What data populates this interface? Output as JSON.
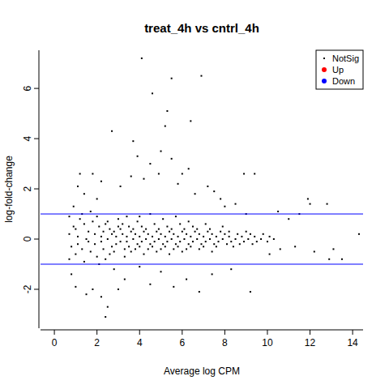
{
  "chart_data": {
    "type": "scatter",
    "title": "treat_4h vs cntrl_4h",
    "x_label": "Average log CPM",
    "y_label": "log-fold-change",
    "xlim": [
      -0.65,
      14.49
    ],
    "ylim": [
      -3.55,
      7.52
    ],
    "xticks": [
      0,
      2,
      4,
      6,
      8,
      10,
      12,
      14
    ],
    "yticks": [
      -2,
      0,
      2,
      4,
      6
    ],
    "hlines": [
      1,
      -1
    ],
    "legend": "topright",
    "series": [
      {
        "name": "NotSig",
        "color": "#000000",
        "marker": "dot",
        "x": [
          0.7,
          0.8,
          0.9,
          0.7,
          1.0,
          1.1,
          1.2,
          1.0,
          1.1,
          1.3,
          1.4,
          1.5,
          1.3,
          1.4,
          1.6,
          1.7,
          1.8,
          1.6,
          1.7,
          1.9,
          2.0,
          2.1,
          1.9,
          2.0,
          2.1,
          2.2,
          2.3,
          2.4,
          2.2,
          2.3,
          2.4,
          2.5,
          2.6,
          2.7,
          2.5,
          2.6,
          2.7,
          2.8,
          2.9,
          3.0,
          2.8,
          2.9,
          3.0,
          3.1,
          3.2,
          3.3,
          3.1,
          3.2,
          3.3,
          3.4,
          3.5,
          3.6,
          3.4,
          3.5,
          3.6,
          3.4,
          3.7,
          3.8,
          3.9,
          3.7,
          3.8,
          3.9,
          4.0,
          4.1,
          4.2,
          4.0,
          4.1,
          4.2,
          4.0,
          4.3,
          4.4,
          4.5,
          4.3,
          4.4,
          4.5,
          4.6,
          4.7,
          4.8,
          4.6,
          4.7,
          4.8,
          4.9,
          5.0,
          5.1,
          4.9,
          5.0,
          5.1,
          5.2,
          5.3,
          5.4,
          5.2,
          5.3,
          5.4,
          5.5,
          5.6,
          5.7,
          5.5,
          5.6,
          5.7,
          5.8,
          5.9,
          6.0,
          5.8,
          5.9,
          6.0,
          6.1,
          6.2,
          6.3,
          6.1,
          6.2,
          6.3,
          6.4,
          6.5,
          6.6,
          6.4,
          6.5,
          6.7,
          6.8,
          6.9,
          6.7,
          6.8,
          7.0,
          7.1,
          7.2,
          7.0,
          7.1,
          7.3,
          7.4,
          7.5,
          7.3,
          7.4,
          7.6,
          7.7,
          7.8,
          7.6,
          7.9,
          8.0,
          8.1,
          7.9,
          8.2,
          8.3,
          8.4,
          8.2,
          8.5,
          8.6,
          8.7,
          8.8,
          8.9,
          9.0,
          9.1,
          9.2,
          9.3,
          9.4,
          9.5,
          9.7,
          9.8,
          10.0,
          10.1,
          10.3,
          4.1,
          6.9,
          5.5,
          4.6,
          5.3,
          5.2,
          6.4,
          2.7,
          3.7,
          5.5,
          4.5,
          5.0,
          4.9,
          6.3,
          8.9,
          9.4,
          3.9,
          3.6,
          1.2,
          1.8,
          2.2,
          6.0,
          7.2,
          7.5,
          11.9,
          12.0,
          12.8,
          14.3,
          13.1,
          12.9,
          13.5,
          2.4,
          2.5,
          2.2,
          1.5,
          1.8,
          3.0,
          4.5,
          5.6,
          6.8,
          9.2,
          1.0,
          3.3,
          0.8,
          10.1,
          10.6,
          11.0,
          11.5,
          10.5,
          8.0,
          9.0,
          12.2,
          11.3,
          0.7,
          0.9,
          1.1,
          1.4,
          2.0,
          3.1,
          4.2,
          5.8,
          6.6,
          7.8,
          8.5,
          6.2,
          7.4,
          8.3,
          5.0,
          2.8,
          4.0
        ],
        "values": [
          0.2,
          -0.3,
          0.5,
          -0.8,
          0.4,
          -0.2,
          0.8,
          -0.6,
          0.1,
          -0.4,
          0.6,
          0.0,
          1.0,
          -0.9,
          0.3,
          -0.5,
          0.7,
          -0.1,
          1.1,
          0.2,
          -0.7,
          0.5,
          -0.2,
          0.9,
          -1.0,
          0.1,
          -0.4,
          0.6,
          -0.1,
          0.3,
          -0.8,
          0.0,
          0.4,
          -0.3,
          0.7,
          -0.6,
          0.2,
          0.3,
          -0.2,
          0.5,
          -0.5,
          0.1,
          0.8,
          -0.1,
          0.2,
          -0.4,
          0.4,
          0.6,
          -0.7,
          0.1,
          -0.3,
          0.3,
          -0.1,
          0.5,
          -0.5,
          0.9,
          0.0,
          0.2,
          -0.2,
          0.4,
          -0.4,
          0.7,
          0.1,
          -0.1,
          0.3,
          -0.3,
          0.5,
          -0.6,
          0.9,
          0.0,
          0.2,
          -0.2,
          0.4,
          -0.4,
          1.0,
          0.1,
          -0.1,
          0.3,
          -0.3,
          0.6,
          -0.5,
          0.0,
          0.2,
          -0.2,
          0.4,
          -0.4,
          0.8,
          0.1,
          -0.1,
          0.3,
          -0.3,
          0.5,
          -0.6,
          0.0,
          0.2,
          -0.2,
          0.4,
          -0.4,
          0.9,
          0.1,
          -0.1,
          0.3,
          -0.3,
          0.6,
          -0.5,
          0.0,
          0.2,
          -0.2,
          0.4,
          -0.4,
          0.7,
          0.1,
          -0.1,
          0.3,
          -0.3,
          0.5,
          0.0,
          0.2,
          -0.2,
          0.4,
          -0.4,
          0.1,
          -0.1,
          0.3,
          -0.3,
          0.6,
          0.0,
          0.2,
          -0.2,
          0.4,
          -0.5,
          0.1,
          -0.1,
          0.3,
          -0.3,
          0.0,
          0.2,
          -0.2,
          0.5,
          0.1,
          -0.1,
          -0.3,
          0.3,
          0.0,
          0.2,
          -0.2,
          0.1,
          -0.1,
          0.3,
          0.0,
          0.2,
          -0.2,
          0.1,
          -0.1,
          0.0,
          0.2,
          -0.1,
          0.1,
          0.0,
          7.2,
          6.5,
          6.4,
          5.8,
          5.1,
          4.5,
          4.7,
          4.3,
          3.9,
          3.2,
          3.0,
          3.5,
          2.6,
          2.8,
          2.6,
          2.6,
          3.3,
          2.5,
          2.6,
          2.6,
          2.3,
          2.6,
          2.1,
          1.9,
          1.6,
          1.4,
          1.4,
          0.2,
          -0.4,
          -0.8,
          -0.8,
          -3.1,
          -2.7,
          -2.3,
          -2.2,
          -2.0,
          -2.0,
          -1.8,
          -1.9,
          -2.1,
          -2.1,
          -1.9,
          -1.6,
          -1.4,
          -0.6,
          -0.4,
          0.8,
          1.0,
          1.1,
          1.3,
          1.0,
          -0.5,
          -0.3,
          0.9,
          1.3,
          2.1,
          1.8,
          1.6,
          2.1,
          2.4,
          2.2,
          1.8,
          1.6,
          1.4,
          -1.6,
          -1.4,
          -1.2,
          -1.3,
          -1.2,
          -1.1
        ]
      },
      {
        "name": "Up",
        "color": "#ff0000",
        "marker": "circle",
        "x": [],
        "values": []
      },
      {
        "name": "Down",
        "color": "#0000ff",
        "marker": "circle",
        "x": [],
        "values": []
      }
    ]
  }
}
